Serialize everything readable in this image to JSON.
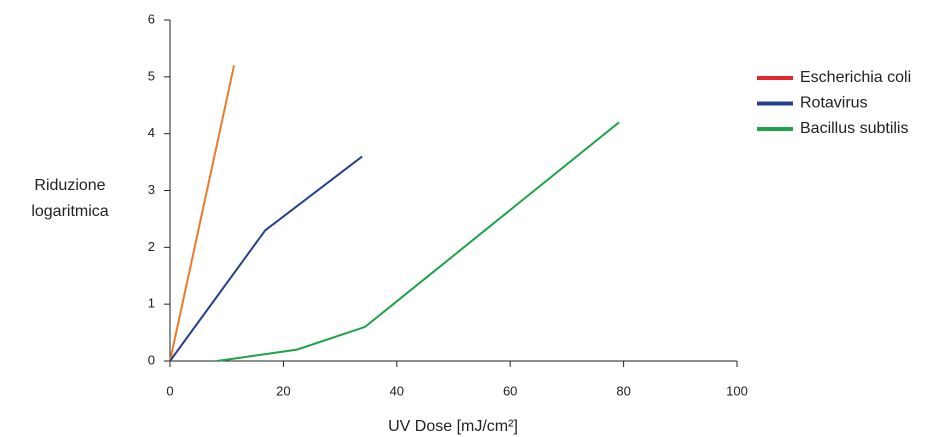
{
  "chart_data": {
    "type": "line",
    "xlabel": "UV Dose [mJ/cm²]",
    "ylabel": [
      "Riduzione",
      "logaritmica"
    ],
    "xlim": [
      0,
      100
    ],
    "xticks": [
      0,
      20,
      40,
      60,
      80,
      100
    ],
    "ylim": [
      0,
      6
    ],
    "yticks": [
      0,
      1,
      2,
      3,
      4,
      5,
      6
    ],
    "grid": false,
    "legend": "right",
    "series": [
      {
        "name": "Escherichia coli",
        "color": "#ec7a2a",
        "legend_color": "#e3262b",
        "x": [
          0,
          11.3
        ],
        "values": [
          0,
          5.2
        ]
      },
      {
        "name": "Rotavirus",
        "color": "#25408f",
        "x": [
          0,
          16.8,
          33.9
        ],
        "values": [
          0,
          2.3,
          3.6
        ]
      },
      {
        "name": "Bacillus subtilis",
        "color": "#1fa24a",
        "x": [
          8.3,
          22.4,
          34.4,
          79.2
        ],
        "values": [
          0,
          0.2,
          0.6,
          4.2
        ]
      }
    ]
  }
}
